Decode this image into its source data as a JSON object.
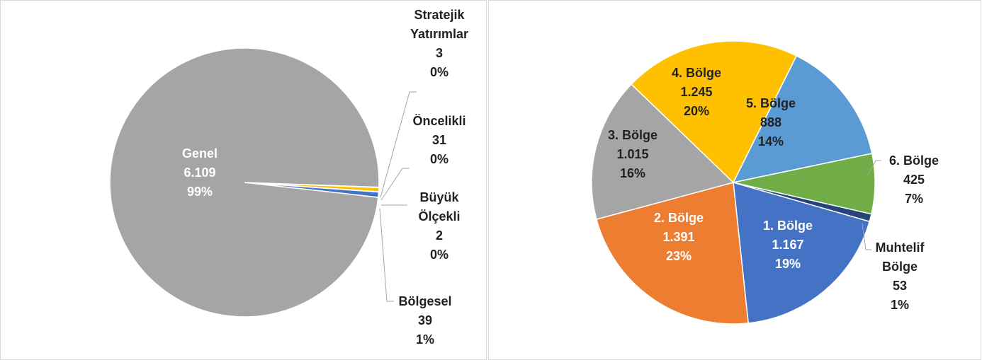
{
  "chart_data": [
    {
      "type": "pie",
      "categories": [
        "Stratejik Yatırımlar",
        "Öncelikli",
        "Büyük Ölçekli",
        "Bölgesel",
        "Genel"
      ],
      "values": [
        3,
        31,
        2,
        39,
        6109
      ],
      "value_labels": [
        "3",
        "31",
        "2",
        "39",
        "6.109"
      ],
      "percents": [
        0,
        0,
        0,
        1,
        99
      ],
      "percent_labels": [
        "0%",
        "0%",
        "0%",
        "1%",
        "99%"
      ],
      "colors": [
        "#5b9bd5",
        "#ffc000",
        "#70ad47",
        "#4472c4",
        "#a5a5a5"
      ]
    },
    {
      "type": "pie",
      "categories": [
        "1. Bölge",
        "2. Bölge",
        "3. Bölge",
        "4. Bölge",
        "5. Bölge",
        "6. Bölge",
        "Muhtelif Bölge"
      ],
      "values": [
        1167,
        1391,
        1015,
        1245,
        888,
        425,
        53
      ],
      "value_labels": [
        "1.167",
        "1.391",
        "1.015",
        "1.245",
        "888",
        "425",
        "53"
      ],
      "percents": [
        19,
        23,
        16,
        20,
        14,
        7,
        1
      ],
      "percent_labels": [
        "19%",
        "23%",
        "16%",
        "20%",
        "14%",
        "7%",
        "1%"
      ],
      "colors": [
        "#4472c4",
        "#ed7d31",
        "#a5a5a5",
        "#ffc000",
        "#5b9bd5",
        "#70ad47",
        "#264478"
      ]
    }
  ]
}
